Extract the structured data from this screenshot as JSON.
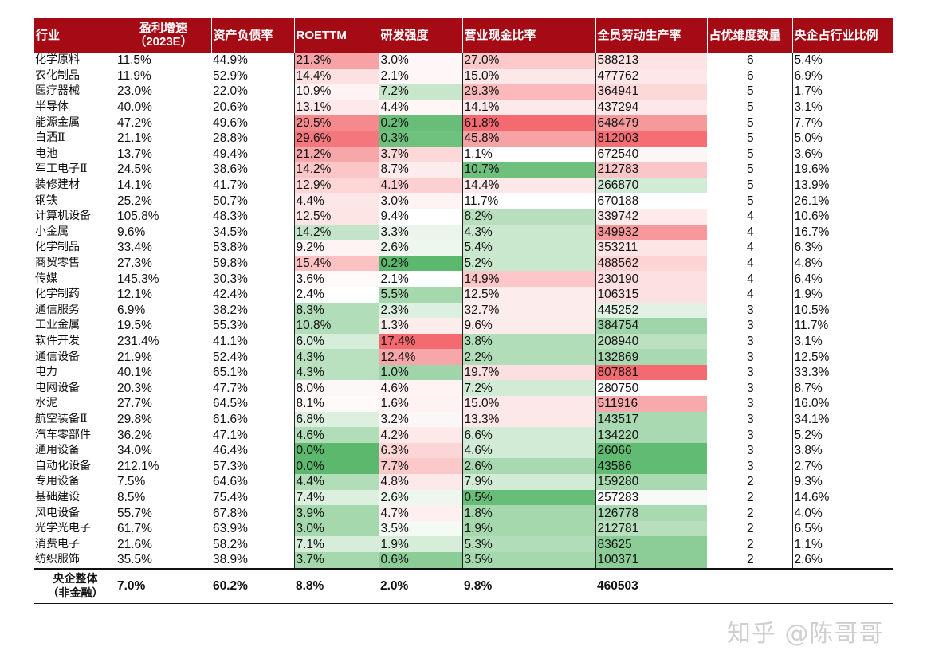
{
  "headers": [
    "行业",
    "盈利增速\n（2023E）",
    "资产负债率",
    "ROETTM",
    "研发强度",
    "营业现金比率",
    "全员劳动生产率",
    "占优维度数量",
    "央企占行业比例"
  ],
  "rows": [
    [
      "化学原料",
      "11.5%",
      "44.9%",
      "21.3%",
      "3.0%",
      "27.0%",
      "588213",
      "6",
      "5.4%"
    ],
    [
      "农化制品",
      "11.9%",
      "52.9%",
      "14.4%",
      "2.1%",
      "15.0%",
      "477762",
      "6",
      "6.9%"
    ],
    [
      "医疗器械",
      "23.0%",
      "22.0%",
      "10.9%",
      "7.2%",
      "29.3%",
      "364941",
      "5",
      "1.7%"
    ],
    [
      "半导体",
      "40.0%",
      "20.6%",
      "13.1%",
      "4.4%",
      "14.1%",
      "437294",
      "5",
      "3.1%"
    ],
    [
      "能源金属",
      "47.2%",
      "49.6%",
      "29.5%",
      "0.2%",
      "61.8%",
      "648479",
      "5",
      "7.7%"
    ],
    [
      "白酒Ⅱ",
      "21.1%",
      "28.8%",
      "29.6%",
      "0.3%",
      "45.8%",
      "812003",
      "5",
      "5.0%"
    ],
    [
      "电池",
      "13.7%",
      "49.4%",
      "21.2%",
      "3.7%",
      "1.1%",
      "672540",
      "5",
      "3.6%"
    ],
    [
      "军工电子Ⅱ",
      "24.5%",
      "38.6%",
      "14.2%",
      "8.7%",
      "10.7%",
      "212783",
      "5",
      "19.6%"
    ],
    [
      "装修建材",
      "14.1%",
      "41.7%",
      "12.9%",
      "4.1%",
      "14.4%",
      "266870",
      "5",
      "13.9%"
    ],
    [
      "钢铁",
      "25.2%",
      "50.7%",
      "4.4%",
      "3.0%",
      "11.7%",
      "670188",
      "5",
      "26.1%"
    ],
    [
      "计算机设备",
      "105.8%",
      "48.3%",
      "12.5%",
      "9.4%",
      "8.2%",
      "339742",
      "4",
      "10.6%"
    ],
    [
      "小金属",
      "9.6%",
      "34.5%",
      "14.2%",
      "3.3%",
      "4.3%",
      "349932",
      "4",
      "16.7%"
    ],
    [
      "化学制品",
      "33.4%",
      "53.8%",
      "9.2%",
      "2.6%",
      "5.4%",
      "353211",
      "4",
      "6.3%"
    ],
    [
      "商贸零售",
      "27.3%",
      "59.8%",
      "15.4%",
      "0.2%",
      "5.2%",
      "488562",
      "4",
      "4.8%"
    ],
    [
      "传媒",
      "145.3%",
      "30.3%",
      "3.6%",
      "2.1%",
      "14.9%",
      "230190",
      "4",
      "6.4%"
    ],
    [
      "化学制药",
      "12.1%",
      "42.4%",
      "2.4%",
      "5.5%",
      "12.5%",
      "106315",
      "4",
      "1.9%"
    ],
    [
      "通信服务",
      "6.9%",
      "38.2%",
      "8.3%",
      "2.3%",
      "32.7%",
      "445252",
      "3",
      "10.5%"
    ],
    [
      "工业金属",
      "19.5%",
      "55.3%",
      "10.8%",
      "1.3%",
      "9.6%",
      "384754",
      "3",
      "11.7%"
    ],
    [
      "软件开发",
      "231.4%",
      "41.1%",
      "6.0%",
      "17.4%",
      "3.8%",
      "208940",
      "3",
      "3.1%"
    ],
    [
      "通信设备",
      "21.9%",
      "52.4%",
      "4.3%",
      "12.4%",
      "2.2%",
      "132869",
      "3",
      "12.5%"
    ],
    [
      "电力",
      "40.1%",
      "65.1%",
      "4.3%",
      "1.0%",
      "19.7%",
      "807881",
      "3",
      "33.3%"
    ],
    [
      "电网设备",
      "20.3%",
      "47.7%",
      "8.0%",
      "4.6%",
      "7.2%",
      "280750",
      "3",
      "8.7%"
    ],
    [
      "水泥",
      "27.7%",
      "64.5%",
      "8.1%",
      "1.6%",
      "15.0%",
      "511916",
      "3",
      "16.0%"
    ],
    [
      "航空装备Ⅱ",
      "29.8%",
      "61.6%",
      "6.8%",
      "3.2%",
      "13.3%",
      "143517",
      "3",
      "34.1%"
    ],
    [
      "汽车零部件",
      "36.2%",
      "47.1%",
      "4.6%",
      "4.2%",
      "6.6%",
      "134220",
      "3",
      "5.2%"
    ],
    [
      "通用设备",
      "34.0%",
      "46.4%",
      "0.0%",
      "6.3%",
      "4.6%",
      "26066",
      "3",
      "3.8%"
    ],
    [
      "自动化设备",
      "212.1%",
      "57.3%",
      "0.0%",
      "7.7%",
      "2.6%",
      "43586",
      "3",
      "2.7%"
    ],
    [
      "专用设备",
      "7.5%",
      "64.6%",
      "4.4%",
      "4.8%",
      "7.9%",
      "159280",
      "2",
      "9.3%"
    ],
    [
      "基础建设",
      "8.5%",
      "75.4%",
      "7.4%",
      "2.6%",
      "0.5%",
      "257283",
      "2",
      "14.6%"
    ],
    [
      "风电设备",
      "55.7%",
      "67.8%",
      "3.9%",
      "4.7%",
      "1.8%",
      "126778",
      "2",
      "4.0%"
    ],
    [
      "光学光电子",
      "61.7%",
      "63.9%",
      "3.0%",
      "3.5%",
      "1.9%",
      "212781",
      "2",
      "6.5%"
    ],
    [
      "消费电子",
      "21.6%",
      "58.2%",
      "7.1%",
      "1.9%",
      "5.3%",
      "83625",
      "2",
      "1.1%"
    ],
    [
      "纺织服饰",
      "35.5%",
      "38.9%",
      "3.7%",
      "0.6%",
      "3.5%",
      "100371",
      "2",
      "2.6%"
    ]
  ],
  "heat_colors": [
    [
      "#f7a3a6",
      "#fff7f7",
      "#fdc9cb",
      "#fde3e4"
    ],
    [
      "#fde1e2",
      "#fff7f7",
      "#fde8e9",
      "#fde8e9"
    ],
    [
      "#fff3f3",
      "#c7e6cc",
      "#fbb9bb",
      "#fdd8d9"
    ],
    [
      "#fde9ea",
      "#fff6f6",
      "#fde9ea",
      "#fde8e9"
    ],
    [
      "#f58a8e",
      "#68be78",
      "#f36a70",
      "#f6999c"
    ],
    [
      "#f4777d",
      "#6ec27d",
      "#f7a3a6",
      "#f46e74"
    ],
    [
      "#f7a6a9",
      "#fdd8d9",
      "#ffffff",
      "#fcf7f7"
    ],
    [
      "#fbc6c8",
      "#fdeced",
      "#6fc07d",
      "#fbc6c8"
    ],
    [
      "#fdd7d8",
      "#fcd0d2",
      "#fde8e9",
      "#d2ebd6"
    ],
    [
      "#fde6e7",
      "#fff3f3",
      "#ffffff",
      "#ffffff"
    ],
    [
      "#fde5e6",
      "#ffffff",
      "#b7dfbd",
      "#fdeaea"
    ],
    [
      "#c3e4c8",
      "#ebf5ec",
      "#c9e8ce",
      "#f7999c"
    ],
    [
      "#fff4f4",
      "#edf7ee",
      "#c9e8ce",
      "#fde4e5"
    ],
    [
      "#fbc1c3",
      "#5cb86d",
      "#c9e8ce",
      "#fdd3d4"
    ],
    [
      "#fffafa",
      "#ffffff",
      "#fdc6c8",
      "#fde0e1"
    ],
    [
      "#ffffff",
      "#a6d8ae",
      "#fdecec",
      "#fde1e2"
    ],
    [
      "#b2ddb9",
      "#dcf0df",
      "#fdecec",
      "#e1f2e4"
    ],
    [
      "#b2ddb9",
      "#fdecec",
      "#fdecec",
      "#9fd5a8"
    ],
    [
      "#d6edda",
      "#f36a70",
      "#b2ddb9",
      "#bbe1c1"
    ],
    [
      "#b9e0bf",
      "#f7a6a9",
      "#b2ddb9",
      "#a8d9b0"
    ],
    [
      "#b9e0bf",
      "#9fd5a8",
      "#fcdfe0",
      "#f36a70"
    ],
    [
      "#fef7f7",
      "#fff3f3",
      "#d2ebd6",
      "#ffffff"
    ],
    [
      "#fffafa",
      "#fef2f2",
      "#fde8e9",
      "#f8a9ac"
    ],
    [
      "#ddf0e0",
      "#fcf7f7",
      "#fde8e9",
      "#a8d9b0"
    ],
    [
      "#b2ddb9",
      "#fde9ea",
      "#d2ebd6",
      "#a8d9b0"
    ],
    [
      "#5cb86d",
      "#fcd6d7",
      "#d2ebd6",
      "#62bb72"
    ],
    [
      "#5cb86d",
      "#fcc9cb",
      "#a8d9b0",
      "#62bb72"
    ],
    [
      "#b2ddb9",
      "#fde9ea",
      "#d2ebd6",
      "#a8d9b0"
    ],
    [
      "#ddf0e0",
      "#edf7ee",
      "#68be78",
      "#f7fbf7"
    ],
    [
      "#a6d8ae",
      "#fef0f0",
      "#a6d8ae",
      "#a8d9b0"
    ],
    [
      "#a6d8ae",
      "#f4fbf5",
      "#a6d8ae",
      "#b7dfbd"
    ],
    [
      "#d6edda",
      "#d6edda",
      "#b2ddb9",
      "#8ccd97"
    ],
    [
      "#a6d8ae",
      "#8ccd97",
      "#a6d8ae",
      "#8ccd97"
    ]
  ],
  "footer": [
    "央企整体\n（非金融）",
    "7.0%",
    "60.2%",
    "8.8%",
    "2.0%",
    "9.8%",
    "460503",
    "",
    ""
  ],
  "watermark": "知乎 @陈哥哥"
}
